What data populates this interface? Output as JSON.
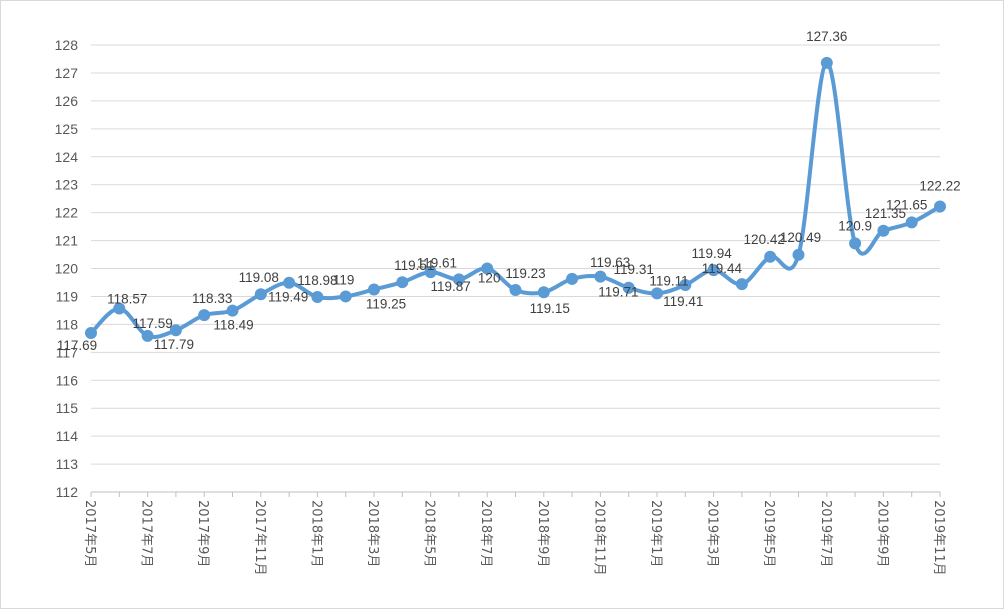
{
  "chart_data": {
    "type": "line",
    "title": "",
    "xlabel": "",
    "ylabel": "",
    "ylim": [
      112,
      128
    ],
    "y_ticks": [
      "112",
      "113",
      "114",
      "115",
      "116",
      "117",
      "118",
      "119",
      "120",
      "121",
      "122",
      "123",
      "124",
      "125",
      "126",
      "127",
      "128"
    ],
    "x_tick_labels": [
      "2017年5月",
      "2017年7月",
      "2017年9月",
      "2017年11月",
      "2018年1月",
      "2018年3月",
      "2018年5月",
      "2018年7月",
      "2018年9月",
      "2018年11月",
      "2019年1月",
      "2019年3月",
      "2019年5月",
      "2019年7月",
      "2019年9月",
      "2019年11月"
    ],
    "x": [
      "2017年5月",
      "2017年6月",
      "2017年7月",
      "2017年8月",
      "2017年9月",
      "2017年10月",
      "2017年11月",
      "2017年12月",
      "2018年1月",
      "2018年2月",
      "2018年3月",
      "2018年4月",
      "2018年5月",
      "2018年6月",
      "2018年7月",
      "2018年8月",
      "2018年9月",
      "2018年10月",
      "2018年11月",
      "2018年12月",
      "2019年1月",
      "2019年2月",
      "2019年3月",
      "2019年4月",
      "2019年5月",
      "2019年6月",
      "2019年7月",
      "2019年8月",
      "2019年9月",
      "2019年10月",
      "2019年11月"
    ],
    "series": [
      {
        "values": [
          117.69,
          118.57,
          117.59,
          117.79,
          118.33,
          118.49,
          119.08,
          119.49,
          118.98,
          119.0,
          119.25,
          119.51,
          119.87,
          119.61,
          120.0,
          119.23,
          119.15,
          119.63,
          119.71,
          119.31,
          119.11,
          119.41,
          119.94,
          119.44,
          120.42,
          120.49,
          127.36,
          120.9,
          121.35,
          121.65,
          122.22
        ],
        "labels": [
          "117.69",
          "118.57",
          "117.59",
          "117.79",
          "118.33",
          "118.49",
          "119.08",
          "119.49",
          "118.98",
          "119",
          "119.25",
          "119.51",
          "119.87",
          "119.61",
          "120",
          "119.23",
          "119.15",
          "119.63",
          "119.71",
          "119.31",
          "119.11",
          "119.41",
          "119.94",
          "119.44",
          "120.42",
          "120.49",
          "127.36",
          "120.9",
          "121.35",
          "121.65",
          "122.22"
        ]
      }
    ],
    "grid": true,
    "colors": {
      "line": "#5b9bd5",
      "grid": "#d9d9d9",
      "text": "#595959"
    }
  }
}
